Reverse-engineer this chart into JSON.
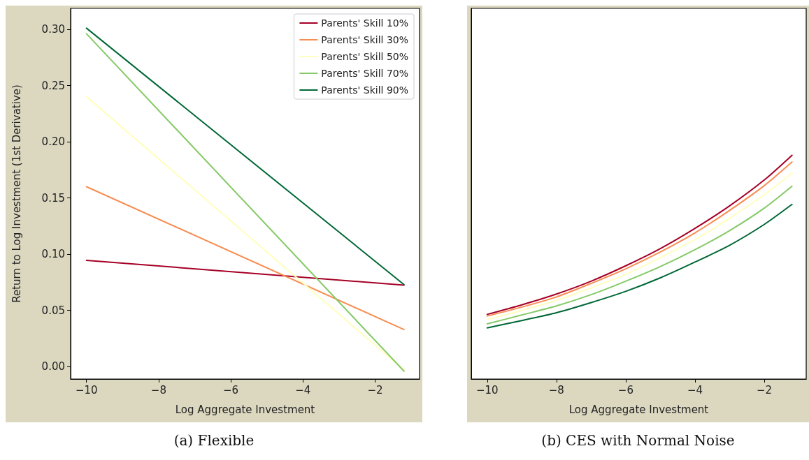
{
  "chart_data": [
    {
      "type": "line",
      "title": "(a) Flexible",
      "xlabel": "Log Aggregate Investment",
      "ylabel": "Return to Log Investment (1st Derivative)",
      "xlim": [
        -10.44,
        -0.77
      ],
      "ylim": [
        -0.011,
        0.3186
      ],
      "xticks": [
        {
          "value": -10,
          "label": "−10"
        },
        {
          "value": -8,
          "label": "−8"
        },
        {
          "value": -6,
          "label": "−6"
        },
        {
          "value": -4,
          "label": "−4"
        },
        {
          "value": -2,
          "label": "−2"
        }
      ],
      "yticks": [
        {
          "value": 0,
          "label": "0.00"
        },
        {
          "value": 0.05,
          "label": "0.05"
        },
        {
          "value": 0.1,
          "label": "0.10"
        },
        {
          "value": 0.15,
          "label": "0.15"
        },
        {
          "value": 0.2,
          "label": "0.20"
        },
        {
          "value": 0.25,
          "label": "0.25"
        },
        {
          "value": 0.3,
          "label": "0.30"
        }
      ],
      "grid": false,
      "legend": "top right",
      "x": [
        -10,
        -1.2
      ],
      "series": [
        {
          "name": "Parents' Skill 10%",
          "color": "#a50026",
          "values": [
            0.0945,
            0.0725
          ]
        },
        {
          "name": "Parents' Skill 30%",
          "color": "#f88d52",
          "values": [
            0.16,
            0.033
          ]
        },
        {
          "name": "Parents' Skill 50%",
          "color": "#ffffbf",
          "values": [
            0.24,
            -0.003
          ]
        },
        {
          "name": "Parents' Skill 70%",
          "color": "#84ca66",
          "values": [
            0.296,
            -0.004
          ]
        },
        {
          "name": "Parents' Skill 90%",
          "color": "#006837",
          "values": [
            0.301,
            0.073
          ]
        }
      ]
    },
    {
      "type": "line",
      "title": "(b) CES with Normal Noise",
      "xlabel": "Log Aggregate Investment",
      "xlim": [
        -10.46,
        -0.79
      ],
      "ylim": [
        -0.011,
        0.3186
      ],
      "xticks": [
        {
          "value": -10,
          "label": "−10"
        },
        {
          "value": -8,
          "label": "−8"
        },
        {
          "value": -6,
          "label": "−6"
        },
        {
          "value": -4,
          "label": "−4"
        },
        {
          "value": -2,
          "label": "−2"
        }
      ],
      "tick_labels": "x",
      "grid": false,
      "x": [
        -10,
        -9,
        -8,
        -7,
        -6,
        -5,
        -4,
        -3,
        -2,
        -1.2
      ],
      "series": [
        {
          "color": "#a50026",
          "values": [
            0.0465,
            0.055,
            0.0646,
            0.076,
            0.0897,
            0.105,
            0.123,
            0.143,
            0.166,
            0.188
          ]
        },
        {
          "color": "#f88d52",
          "values": [
            0.045,
            0.053,
            0.062,
            0.074,
            0.087,
            0.102,
            0.119,
            0.139,
            0.161,
            0.182
          ]
        },
        {
          "color": "#ffffbf",
          "values": [
            0.042,
            0.05,
            0.059,
            0.07,
            0.082,
            0.097,
            0.113,
            0.132,
            0.153,
            0.172
          ]
        },
        {
          "color": "#84ca66",
          "values": [
            0.038,
            0.046,
            0.054,
            0.064,
            0.076,
            0.089,
            0.104,
            0.121,
            0.141,
            0.1605
          ]
        },
        {
          "color": "#006837",
          "values": [
            0.0345,
            0.041,
            0.048,
            0.057,
            0.067,
            0.079,
            0.093,
            0.108,
            0.1265,
            0.1443
          ]
        }
      ]
    }
  ]
}
